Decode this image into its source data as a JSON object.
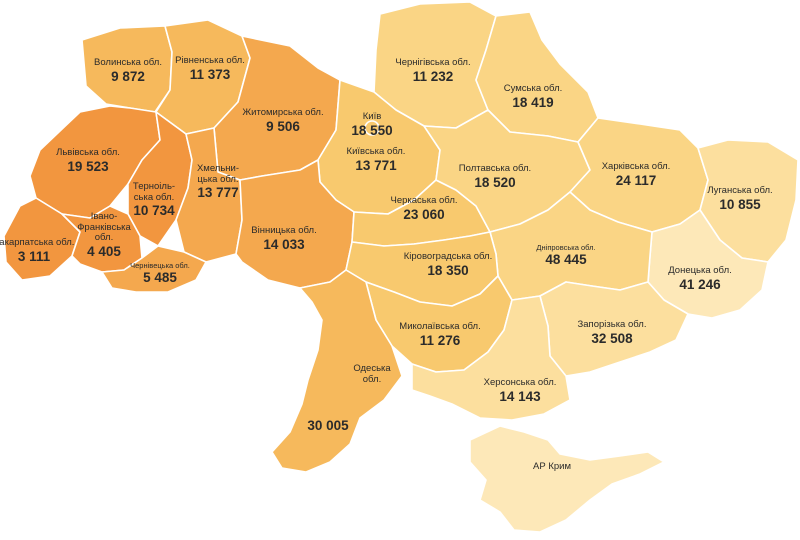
{
  "colors": {
    "dark": "#F2963F",
    "d1": "#F4A84E",
    "d2": "#F6B95C",
    "d3": "#F8C96E",
    "d4": "#FAD585",
    "d5": "#FCDF9E",
    "d6": "#FDE8B8",
    "border": "#FFFFFF"
  },
  "regions": {
    "volyn": {
      "name": "Волинська обл.",
      "value": "9 872"
    },
    "rivne": {
      "name": "Рівненська обл.",
      "value": "11 373"
    },
    "zhytomyr": {
      "name": "Житомирська обл.",
      "value": "9 506"
    },
    "chernihiv": {
      "name": "Чернігівська обл.",
      "value": "11 232"
    },
    "sumy": {
      "name": "Сумська обл.",
      "value": "18 419"
    },
    "kyiv_city": {
      "name": "Київ",
      "value": "18 550"
    },
    "kyiv_obl": {
      "name": "Київська обл.",
      "value": "13 771"
    },
    "lviv": {
      "name": "Львівська обл.",
      "value": "19 523"
    },
    "ternopil": {
      "name": "Терноіль-ська обл.",
      "value": "10 734"
    },
    "khmelnytskyi": {
      "name": "Хмельни-цька обл.",
      "value": "13 777"
    },
    "poltava": {
      "name": "Полтавська обл.",
      "value": "18 520"
    },
    "kharkiv": {
      "name": "Харківська обл.",
      "value": "24 117"
    },
    "luhansk": {
      "name": "Луганська обл.",
      "value": "10 855"
    },
    "cherkasy": {
      "name": "Черкаська обл.",
      "value": "23 060"
    },
    "zakarpattia": {
      "name": "Закарпатська обл.",
      "value": "3 111"
    },
    "ivano": {
      "name": "Івано-Франківська обл.",
      "value": "4 405"
    },
    "vinnytsia": {
      "name": "Вінницька обл.",
      "value": "14 033"
    },
    "kirovohrad": {
      "name": "Кіровоградська обл.",
      "value": "18 350"
    },
    "dnipro": {
      "name": "Дніпровська обл.",
      "value": "48 445"
    },
    "donetsk": {
      "name": "Донецька обл.",
      "value": "41 246"
    },
    "chernivtsi": {
      "name": "Чернівецька обл.",
      "value": "5 485"
    },
    "zaporizhzhia": {
      "name": "Запорізька обл.",
      "value": "32 508"
    },
    "mykolaiv": {
      "name": "Миколаївська обл.",
      "value": "11 276"
    },
    "odesa": {
      "name": "Одеська обл.",
      "value": "30 005"
    },
    "kherson": {
      "name": "Херсонська обл.",
      "value": "14 143"
    },
    "crimea": {
      "name": "АР Крим",
      "value": ""
    }
  }
}
